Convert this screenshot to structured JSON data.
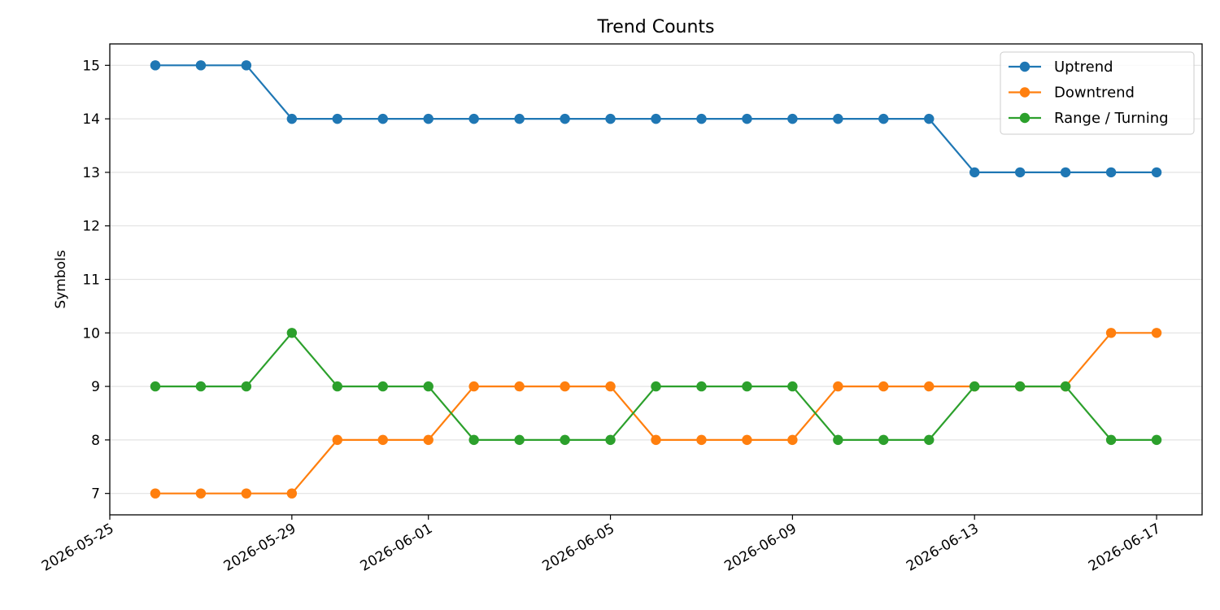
{
  "chart_data": {
    "type": "line",
    "title": "Trend Counts",
    "xlabel": "",
    "ylabel": "Symbols",
    "x": [
      "2026-05-26",
      "2026-05-27",
      "2026-05-28",
      "2026-05-29",
      "2026-05-30",
      "2026-05-31",
      "2026-06-01",
      "2026-06-02",
      "2026-06-03",
      "2026-06-04",
      "2026-06-05",
      "2026-06-06",
      "2026-06-07",
      "2026-06-08",
      "2026-06-09",
      "2026-06-10",
      "2026-06-11",
      "2026-06-12",
      "2026-06-13",
      "2026-06-14",
      "2026-06-15",
      "2026-06-16",
      "2026-06-17"
    ],
    "xlim": [
      "2026-05-25",
      "2026-06-18"
    ],
    "xticks": [
      "2026-05-25",
      "2026-05-29",
      "2026-06-01",
      "2026-06-05",
      "2026-06-09",
      "2026-06-13",
      "2026-06-17"
    ],
    "ylim": [
      6.6,
      15.4
    ],
    "yticks": [
      7,
      8,
      9,
      10,
      11,
      12,
      13,
      14,
      15
    ],
    "grid": "y",
    "legend_position": "top-right",
    "series": [
      {
        "name": "Uptrend",
        "color": "#1f77b4",
        "values": [
          15,
          15,
          15,
          14,
          14,
          14,
          14,
          14,
          14,
          14,
          14,
          14,
          14,
          14,
          14,
          14,
          14,
          14,
          13,
          13,
          13,
          13,
          13
        ]
      },
      {
        "name": "Downtrend",
        "color": "#ff7f0e",
        "values": [
          7,
          7,
          7,
          7,
          8,
          8,
          8,
          9,
          9,
          9,
          9,
          8,
          8,
          8,
          8,
          9,
          9,
          9,
          9,
          9,
          9,
          10,
          10
        ]
      },
      {
        "name": "Range / Turning",
        "color": "#2ca02c",
        "values": [
          9,
          9,
          9,
          10,
          9,
          9,
          9,
          8,
          8,
          8,
          8,
          9,
          9,
          9,
          9,
          8,
          8,
          8,
          9,
          9,
          9,
          8,
          8
        ]
      }
    ]
  }
}
